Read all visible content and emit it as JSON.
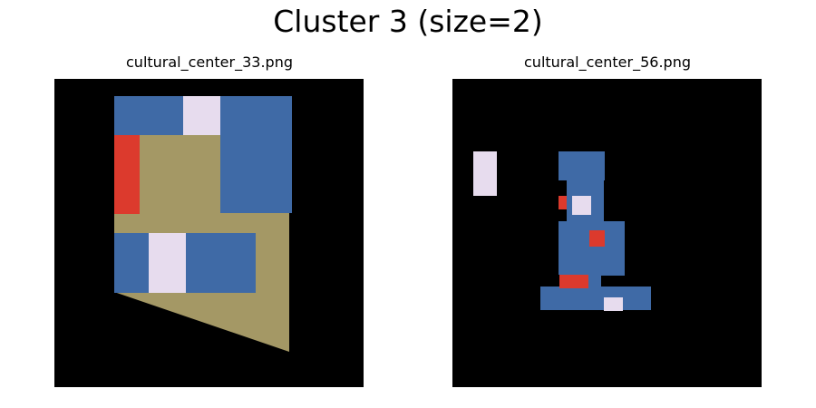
{
  "figure": {
    "title": "Cluster 3 (size=2)"
  },
  "panels": [
    {
      "filename": "cultural_center_33.png"
    },
    {
      "filename": "cultural_center_56.png"
    }
  ],
  "colors": {
    "background": "#000000",
    "blue": "#3f6aa6",
    "khaki": "#a49865",
    "red": "#dc3a2d",
    "lavender": "#e7dcee"
  }
}
